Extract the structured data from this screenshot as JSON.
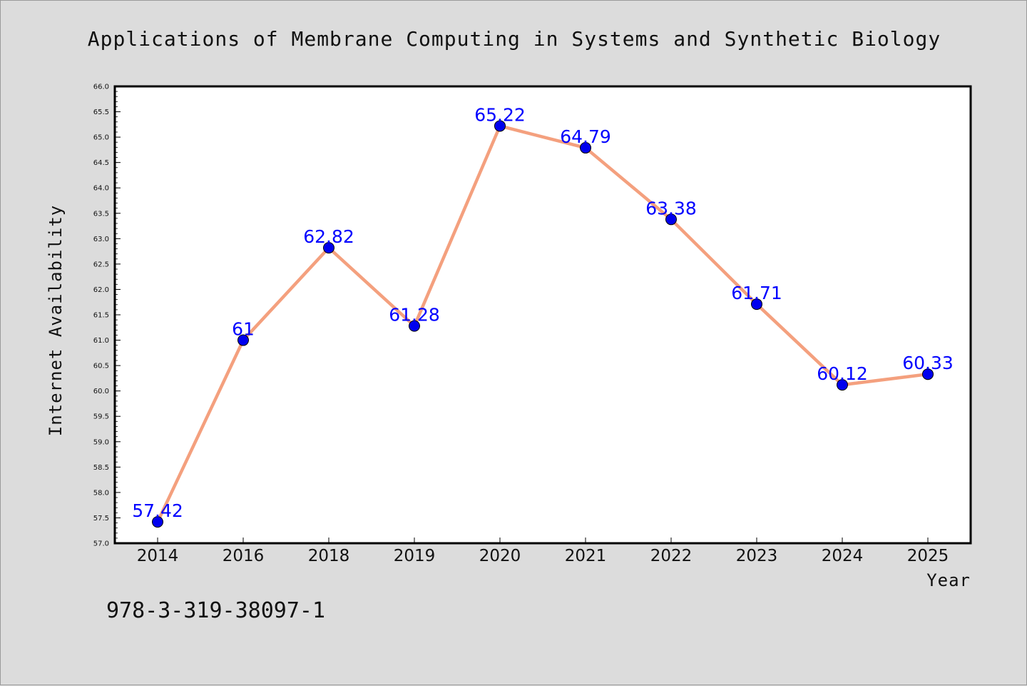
{
  "chart_data": {
    "type": "line",
    "title": "Applications of Membrane Computing in Systems and Synthetic Biology",
    "xlabel": "Year",
    "ylabel": "Internet Availability",
    "categories": [
      "2014",
      "2016",
      "2018",
      "2019",
      "2020",
      "2021",
      "2022",
      "2023",
      "2024",
      "2025"
    ],
    "series": [
      {
        "values": [
          57.42,
          61,
          62.82,
          61.28,
          65.22,
          64.79,
          63.38,
          61.71,
          60.12,
          60.33
        ],
        "labels": [
          "57.42",
          "61",
          "62.82",
          "61.28",
          "65.22",
          "64.79",
          "63.38",
          "61.71",
          "60.12",
          "60.33"
        ],
        "line_color": "#f4a07e",
        "marker_color": "#0000ee"
      }
    ],
    "ylim": [
      57.0,
      66.0
    ],
    "yticks": [
      "57.0",
      "57.5",
      "58.0",
      "58.5",
      "59.0",
      "59.5",
      "60.0",
      "60.5",
      "61.0",
      "61.5",
      "62.0",
      "62.5",
      "63.0",
      "63.5",
      "64.0",
      "64.5",
      "65.0",
      "65.5",
      "66.0"
    ],
    "grid": false,
    "data_label_color": "#0000ff",
    "background": "#dcdcdc",
    "plot_background": "#ffffff"
  },
  "footnote": "978-3-319-38097-1"
}
